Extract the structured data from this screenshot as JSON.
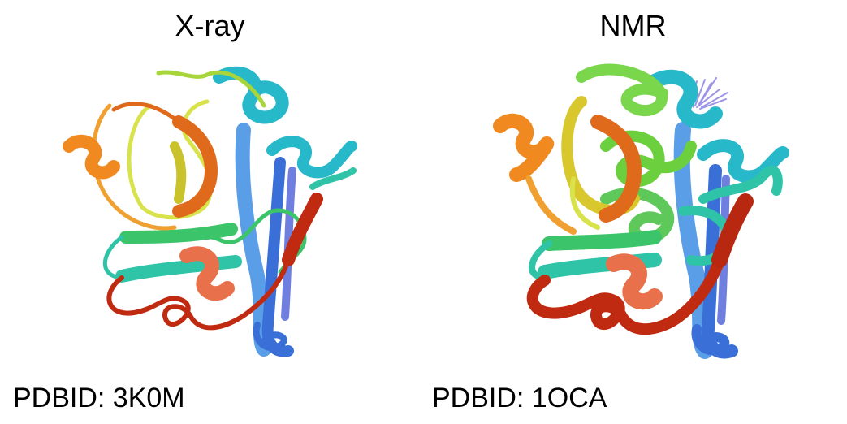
{
  "panels": [
    {
      "title": "X-ray",
      "label": "PDBID: 3K0M"
    },
    {
      "title": "NMR",
      "label": "PDBID: 1OCA"
    }
  ],
  "ribbon_colors": {
    "blue": "#3a6fd8",
    "light_blue": "#5b9ee8",
    "cyan": "#27b8c9",
    "teal": "#2fc4a8",
    "green": "#3cc46a",
    "yellow_green": "#a8d63a",
    "yellow": "#d8c82e",
    "orange": "#f08a20",
    "dark_orange": "#e06a1c",
    "red": "#c02a10",
    "lavender": "#9c94e6"
  }
}
